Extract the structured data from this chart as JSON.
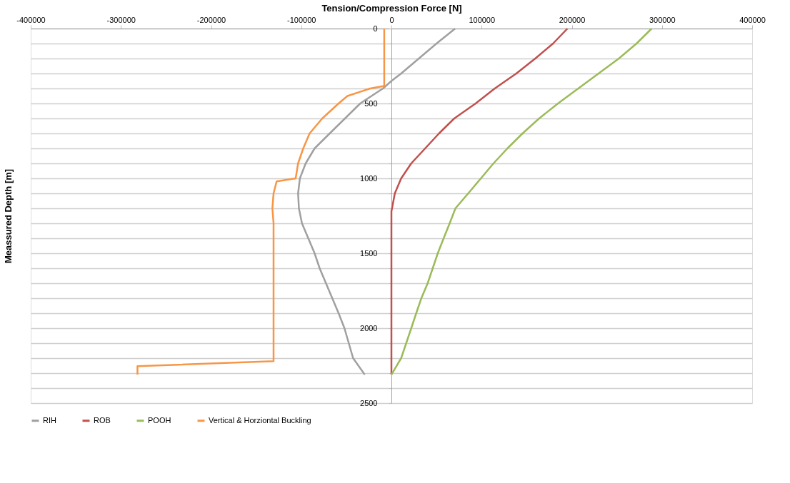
{
  "chart_data": {
    "type": "line",
    "xlabel": "Tension/Compression Force [N]",
    "ylabel": "Meassured Depth [m]",
    "xlim": [
      -400000,
      400000
    ],
    "xticks": [
      -400000,
      -300000,
      -200000,
      -100000,
      0,
      100000,
      200000,
      300000,
      400000
    ],
    "ylim": [
      2500,
      0
    ],
    "yticks": [
      0,
      {
        "value": 100,
        "label": null
      },
      {
        "value": 200,
        "label": null
      },
      {
        "value": 300,
        "label": null
      },
      {
        "value": 400,
        "label": null
      },
      500,
      {
        "value": 600,
        "label": null
      },
      {
        "value": 700,
        "label": null
      },
      {
        "value": 800,
        "label": null
      },
      {
        "value": 900,
        "label": null
      },
      1000,
      {
        "value": 1100,
        "label": null
      },
      {
        "value": 1200,
        "label": null
      },
      {
        "value": 1300,
        "label": null
      },
      {
        "value": 1400,
        "label": null
      },
      1500,
      {
        "value": 1600,
        "label": null
      },
      {
        "value": 1700,
        "label": null
      },
      {
        "value": 1800,
        "label": null
      },
      {
        "value": 1900,
        "label": null
      },
      2000,
      {
        "value": 2100,
        "label": null
      },
      {
        "value": 2200,
        "label": null
      },
      {
        "value": 2300,
        "label": null
      },
      {
        "value": 2400,
        "label": null
      },
      2500
    ],
    "grid": "y",
    "legend": "bottom",
    "marker": "none",
    "line_style": "solid",
    "series": [
      {
        "name": "RIH",
        "color": "#a0a0a0",
        "x": [
          70700,
          50000,
          30400,
          10800,
          0,
          -9400,
          -34600,
          -51500,
          -68400,
          -85200,
          -95100,
          -101500,
          -103500,
          -102600,
          -99200,
          -92200,
          -85200,
          -79600,
          -72600,
          -65600,
          -58600,
          -52100,
          -47300,
          -42500,
          -29600
        ],
        "values": [
          0,
          100,
          200,
          300,
          350,
          400,
          500,
          600,
          700,
          800,
          900,
          1000,
          1100,
          1200,
          1300,
          1400,
          1500,
          1600,
          1700,
          1800,
          1900,
          2000,
          2100,
          2200,
          2310
        ]
      },
      {
        "name": "ROB",
        "color": "#c0504d",
        "x": [
          195200,
          179200,
          159500,
          138500,
          114600,
          93400,
          69700,
          52800,
          37400,
          22000,
          10800,
          3800,
          0,
          0
        ],
        "values": [
          0,
          100,
          200,
          300,
          400,
          500,
          600,
          700,
          800,
          900,
          1000,
          1100,
          1220,
          2310
        ]
      },
      {
        "name": "POOH",
        "color": "#9bbb59",
        "x": [
          288600,
          271800,
          252200,
          229700,
          207200,
          184700,
          163800,
          145400,
          128600,
          113200,
          99200,
          85200,
          71000,
          64600,
          57900,
          51400,
          45800,
          40200,
          33200,
          27500,
          22000,
          16400,
          10800,
          0
        ],
        "values": [
          0,
          100,
          200,
          300,
          400,
          500,
          600,
          700,
          800,
          900,
          1000,
          1100,
          1200,
          1300,
          1400,
          1500,
          1600,
          1700,
          1800,
          1900,
          2000,
          2100,
          2200,
          2310
        ]
      },
      {
        "name": "Vertical & Horziontal Buckling",
        "color": "#f79646",
        "x": [
          -8000,
          -8000,
          -23500,
          -48700,
          -58600,
          -76700,
          -90700,
          -97800,
          -103500,
          -106200,
          -127300,
          -130700,
          -132000,
          -130700,
          -130700,
          -281600,
          -281600
        ],
        "values": [
          0,
          383,
          400,
          450,
          500,
          600,
          700,
          800,
          900,
          1000,
          1020,
          1100,
          1200,
          1300,
          2220,
          2254,
          2310
        ]
      }
    ]
  }
}
